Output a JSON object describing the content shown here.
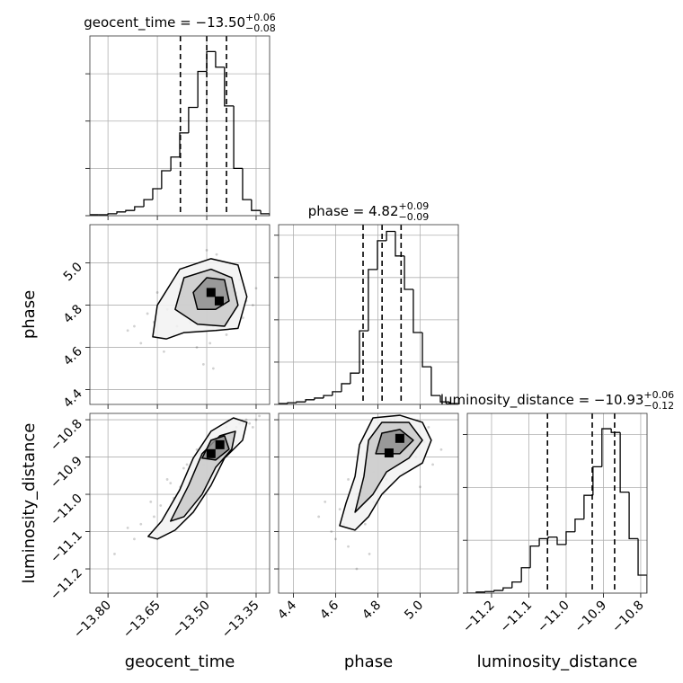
{
  "chart_data": [
    {
      "type": "histogram",
      "title": "geocent_time = −13.50",
      "title_sup": "+0.06",
      "title_sub": "−0.08",
      "bins": [
        -13.855,
        -13.828,
        -13.8,
        -13.773,
        -13.746,
        -13.719,
        -13.691,
        -13.664,
        -13.637,
        -13.609,
        -13.582,
        -13.555,
        -13.527,
        -13.5,
        -13.473,
        -13.446,
        -13.418,
        -13.391,
        -13.364,
        -13.336,
        -13.309
      ],
      "values": [
        0.02,
        0.02,
        0.04,
        0.08,
        0.11,
        0.19,
        0.34,
        0.57,
        0.95,
        1.24,
        1.75,
        2.29,
        3.05,
        3.47,
        3.14,
        2.32,
        1.0,
        0.34,
        0.11,
        0.04
      ],
      "quantiles": [
        -13.58,
        -13.5,
        -13.44
      ],
      "color": "#000000",
      "xlim": [
        -13.855,
        -13.309
      ],
      "xticks": [
        -13.8,
        -13.65,
        -13.5,
        -13.35
      ],
      "xtick_labels": false,
      "ylim": [
        0,
        3.8
      ],
      "yticks": [
        0,
        1,
        2,
        3
      ],
      "ytick_labels": false,
      "grid": true
    },
    {
      "type": "scatter",
      "color": "#000000",
      "x": [
        -13.62,
        -13.58,
        -13.55,
        -13.52,
        -13.5,
        -13.48,
        -13.45,
        -13.42,
        -13.4,
        -13.38,
        -13.6,
        -13.66,
        -13.7,
        -13.74,
        -13.56,
        -13.53,
        -13.47,
        -13.44,
        -13.41,
        -13.36,
        -13.51,
        -13.49,
        -13.46,
        -13.57,
        -13.63,
        -13.68,
        -13.43,
        -13.54,
        -13.59,
        -13.39,
        -13.5,
        -13.48,
        -13.65,
        -13.72,
        -13.35
      ],
      "y": [
        4.78,
        4.9,
        4.72,
        4.96,
        4.84,
        4.7,
        4.88,
        4.76,
        4.92,
        4.82,
        4.66,
        4.72,
        4.62,
        4.68,
        4.98,
        4.6,
        5.04,
        4.66,
        4.86,
        4.8,
        4.52,
        4.62,
        4.94,
        4.84,
        4.58,
        4.76,
        5.0,
        4.86,
        4.7,
        4.74,
        5.06,
        4.5,
        4.86,
        4.7,
        4.88
      ],
      "contours": [
        [
          [
            -13.664,
            4.65
          ],
          [
            -13.65,
            4.8
          ],
          [
            -13.582,
            4.97
          ],
          [
            -13.487,
            5.02
          ],
          [
            -13.405,
            4.99
          ],
          [
            -13.378,
            4.84
          ],
          [
            -13.405,
            4.69
          ],
          [
            -13.473,
            4.68
          ],
          [
            -13.569,
            4.67
          ],
          [
            -13.623,
            4.64
          ]
        ],
        [
          [
            -13.596,
            4.78
          ],
          [
            -13.569,
            4.93
          ],
          [
            -13.487,
            4.97
          ],
          [
            -13.424,
            4.93
          ],
          [
            -13.405,
            4.8
          ],
          [
            -13.446,
            4.7
          ],
          [
            -13.528,
            4.71
          ]
        ],
        [
          [
            -13.541,
            4.86
          ],
          [
            -13.5,
            4.93
          ],
          [
            -13.446,
            4.92
          ],
          [
            -13.432,
            4.82
          ],
          [
            -13.473,
            4.78
          ],
          [
            -13.528,
            4.78
          ]
        ]
      ],
      "peaks": [
        [
          -13.487,
          4.86
        ],
        [
          -13.462,
          4.82
        ]
      ],
      "ylabel": "phase",
      "xlim": [
        -13.855,
        -13.309
      ],
      "xticks": [
        -13.8,
        -13.65,
        -13.5,
        -13.35
      ],
      "xtick_labels": false,
      "ylim": [
        4.33,
        5.181
      ],
      "yticks": [
        4.4,
        4.6,
        4.8,
        {
          "value": 5,
          "label": "5.0"
        }
      ],
      "ytick_labels": true,
      "grid": true
    },
    {
      "type": "histogram",
      "title": "phase = 4.82",
      "title_sup": "+0.09",
      "title_sub": "−0.09",
      "bins": [
        4.33,
        4.373,
        4.415,
        4.458,
        4.5,
        4.543,
        4.585,
        4.628,
        4.67,
        4.713,
        4.755,
        4.798,
        4.841,
        4.883,
        4.926,
        4.968,
        5.011,
        5.053,
        5.096,
        5.138,
        5.181
      ],
      "values": [
        0.02,
        0.04,
        0.06,
        0.11,
        0.15,
        0.21,
        0.3,
        0.49,
        0.74,
        1.74,
        3.19,
        3.87,
        4.09,
        3.51,
        2.72,
        1.7,
        0.89,
        0.21,
        0.06,
        0.02
      ],
      "quantiles": [
        4.73,
        4.82,
        4.91
      ],
      "color": "#000000",
      "xlim": [
        4.33,
        5.181
      ],
      "xticks": [
        4.4,
        4.6,
        4.8,
        5
      ],
      "xtick_labels": false,
      "ylim": [
        0,
        4.25
      ],
      "yticks": [
        0,
        1,
        2,
        3,
        4
      ],
      "ytick_labels": false,
      "grid": true
    },
    {
      "type": "scatter",
      "color": "#000000",
      "x": [
        -13.78,
        -13.74,
        -13.7,
        -13.67,
        -13.64,
        -13.61,
        -13.58,
        -13.56,
        -13.54,
        -13.52,
        -13.5,
        -13.48,
        -13.46,
        -13.44,
        -13.42,
        -13.4,
        -13.38,
        -13.36,
        -13.34,
        -13.62,
        -13.55,
        -13.49,
        -13.45,
        -13.41,
        -13.37,
        -13.6,
        -13.53,
        -13.47,
        -13.43,
        -13.39,
        -13.66,
        -13.57,
        -13.51,
        -13.35,
        -13.72
      ],
      "y": [
        -11.16,
        -11.09,
        -11.08,
        -11.02,
        -11.03,
        -10.97,
        -10.98,
        -10.92,
        -10.94,
        -10.89,
        -10.9,
        -10.86,
        -10.87,
        -10.82,
        -10.83,
        -10.81,
        -10.8,
        -10.82,
        -10.79,
        -10.96,
        -10.97,
        -10.85,
        -10.87,
        -10.82,
        -10.81,
        -11.01,
        -10.88,
        -10.9,
        -10.84,
        -10.81,
        -11.06,
        -10.93,
        -10.92,
        -10.8,
        -11.12
      ],
      "contours": [
        [
          [
            -13.678,
            -11.113
          ],
          [
            -13.637,
            -11.072
          ],
          [
            -13.582,
            -10.988
          ],
          [
            -13.541,
            -10.903
          ],
          [
            -13.487,
            -10.831
          ],
          [
            -13.419,
            -10.795
          ],
          [
            -13.378,
            -10.807
          ],
          [
            -13.391,
            -10.855
          ],
          [
            -13.446,
            -10.903
          ],
          [
            -13.487,
            -10.976
          ],
          [
            -13.541,
            -11.048
          ],
          [
            -13.596,
            -11.096
          ],
          [
            -13.65,
            -11.12
          ]
        ],
        [
          [
            -13.61,
            -11.072
          ],
          [
            -13.555,
            -10.976
          ],
          [
            -13.514,
            -10.891
          ],
          [
            -13.46,
            -10.843
          ],
          [
            -13.413,
            -10.831
          ],
          [
            -13.424,
            -10.879
          ],
          [
            -13.473,
            -10.928
          ],
          [
            -13.514,
            -11.0
          ],
          [
            -13.569,
            -11.06
          ]
        ],
        [
          [
            -13.514,
            -10.903
          ],
          [
            -13.487,
            -10.855
          ],
          [
            -13.446,
            -10.843
          ],
          [
            -13.432,
            -10.879
          ],
          [
            -13.473,
            -10.908
          ]
        ]
      ],
      "peaks": [
        [
          -13.487,
          -10.891
        ],
        [
          -13.46,
          -10.867
        ]
      ],
      "xlabel": "geocent_time",
      "ylabel": "luminosity_distance",
      "xlim": [
        -13.855,
        -13.309
      ],
      "xticks": [
        {
          "value": -13.8,
          "label": "−13.80"
        },
        {
          "value": -13.65,
          "label": "−13.65"
        },
        {
          "value": -13.5,
          "label": "−13.50"
        },
        {
          "value": -13.35,
          "label": "−13.35"
        }
      ],
      "xtick_labels": true,
      "ylim": [
        -11.265,
        -10.783
      ],
      "yticks": [
        {
          "value": -11.2,
          "label": "−11.2"
        },
        {
          "value": -11.1,
          "label": "−11.1"
        },
        {
          "value": -11,
          "label": "−11.0"
        },
        {
          "value": -10.9,
          "label": "−10.9"
        },
        {
          "value": -10.8,
          "label": "−10.8"
        }
      ],
      "ytick_labels": true,
      "grid": true
    },
    {
      "type": "scatter",
      "color": "#000000",
      "x": [
        4.52,
        4.58,
        4.62,
        4.66,
        4.7,
        4.74,
        4.78,
        4.82,
        4.86,
        4.9,
        4.94,
        4.98,
        5.02,
        5.06,
        5.1,
        4.55,
        4.64,
        4.72,
        4.8,
        4.88,
        4.96,
        5.04,
        4.6,
        4.68,
        4.76,
        4.84,
        4.92,
        5.0,
        4.7,
        4.78,
        4.86,
        4.74,
        4.82,
        4.66,
        4.9
      ],
      "y": [
        -11.06,
        -11.1,
        -11.04,
        -11.14,
        -11.0,
        -11.08,
        -10.94,
        -10.86,
        -10.82,
        -10.88,
        -10.84,
        -10.9,
        -10.86,
        -10.92,
        -10.88,
        -11.02,
        -11.08,
        -10.98,
        -10.9,
        -10.8,
        -10.86,
        -10.82,
        -11.12,
        -11.04,
        -11.16,
        -10.96,
        -10.94,
        -10.98,
        -11.2,
        -11.02,
        -10.8,
        -10.92,
        -10.84,
        -10.96,
        -10.92
      ],
      "contours": [
        [
          [
            4.619,
            -11.084
          ],
          [
            4.649,
            -11.024
          ],
          [
            4.692,
            -10.952
          ],
          [
            4.713,
            -10.867
          ],
          [
            4.777,
            -10.795
          ],
          [
            4.904,
            -10.788
          ],
          [
            5.011,
            -10.807
          ],
          [
            5.053,
            -10.855
          ],
          [
            5.011,
            -10.916
          ],
          [
            4.904,
            -10.952
          ],
          [
            4.819,
            -11.0
          ],
          [
            4.756,
            -11.06
          ],
          [
            4.692,
            -11.096
          ]
        ],
        [
          [
            4.692,
            -11.048
          ],
          [
            4.734,
            -10.952
          ],
          [
            4.756,
            -10.855
          ],
          [
            4.819,
            -10.807
          ],
          [
            4.947,
            -10.807
          ],
          [
            5.011,
            -10.855
          ],
          [
            4.947,
            -10.903
          ],
          [
            4.841,
            -10.94
          ],
          [
            4.777,
            -11.0
          ]
        ],
        [
          [
            4.79,
            -10.891
          ],
          [
            4.819,
            -10.836
          ],
          [
            4.904,
            -10.826
          ],
          [
            4.968,
            -10.855
          ],
          [
            4.904,
            -10.891
          ]
        ]
      ],
      "peaks": [
        [
          4.853,
          -10.889
        ],
        [
          4.904,
          -10.85
        ]
      ],
      "xlabel": "phase",
      "xlim": [
        4.33,
        5.181
      ],
      "xticks": [
        4.4,
        4.6,
        4.8,
        {
          "value": 5,
          "label": "5.0"
        }
      ],
      "xtick_labels": true,
      "ylim": [
        -11.265,
        -10.783
      ],
      "yticks": [
        -11.2,
        -11.1,
        -11,
        -10.9,
        -10.8
      ],
      "ytick_labels": false,
      "grid": true
    },
    {
      "type": "histogram",
      "title": "luminosity_distance = −10.93",
      "title_sup": "+0.06",
      "title_sub": "−0.12",
      "bins": [
        -11.265,
        -11.241,
        -11.217,
        -11.193,
        -11.169,
        -11.145,
        -11.12,
        -11.096,
        -11.072,
        -11.048,
        -11.024,
        -11.0,
        -10.976,
        -10.952,
        -10.928,
        -10.904,
        -10.879,
        -10.855,
        -10.831,
        -10.807,
        -10.783
      ],
      "values": [
        0,
        0.02,
        0.03,
        0.05,
        0.1,
        0.21,
        0.48,
        0.89,
        1.03,
        1.06,
        0.92,
        1.16,
        1.4,
        1.85,
        2.39,
        3.11,
        3.04,
        1.91,
        1.03,
        0.34
      ],
      "quantiles": [
        -11.05,
        -10.93,
        -10.87
      ],
      "color": "#000000",
      "xlabel": "luminosity_distance",
      "xlim": [
        -11.265,
        -10.783
      ],
      "xticks": [
        {
          "value": -11.2,
          "label": "−11.2"
        },
        {
          "value": -11.1,
          "label": "−11.1"
        },
        {
          "value": -11,
          "label": "−11.0"
        },
        {
          "value": -10.9,
          "label": "−10.9"
        },
        {
          "value": -10.8,
          "label": "−10.8"
        }
      ],
      "xtick_labels": true,
      "ylim": [
        0,
        3.4
      ],
      "yticks": [
        0,
        1,
        2,
        3
      ],
      "ytick_labels": false,
      "grid": true
    }
  ]
}
